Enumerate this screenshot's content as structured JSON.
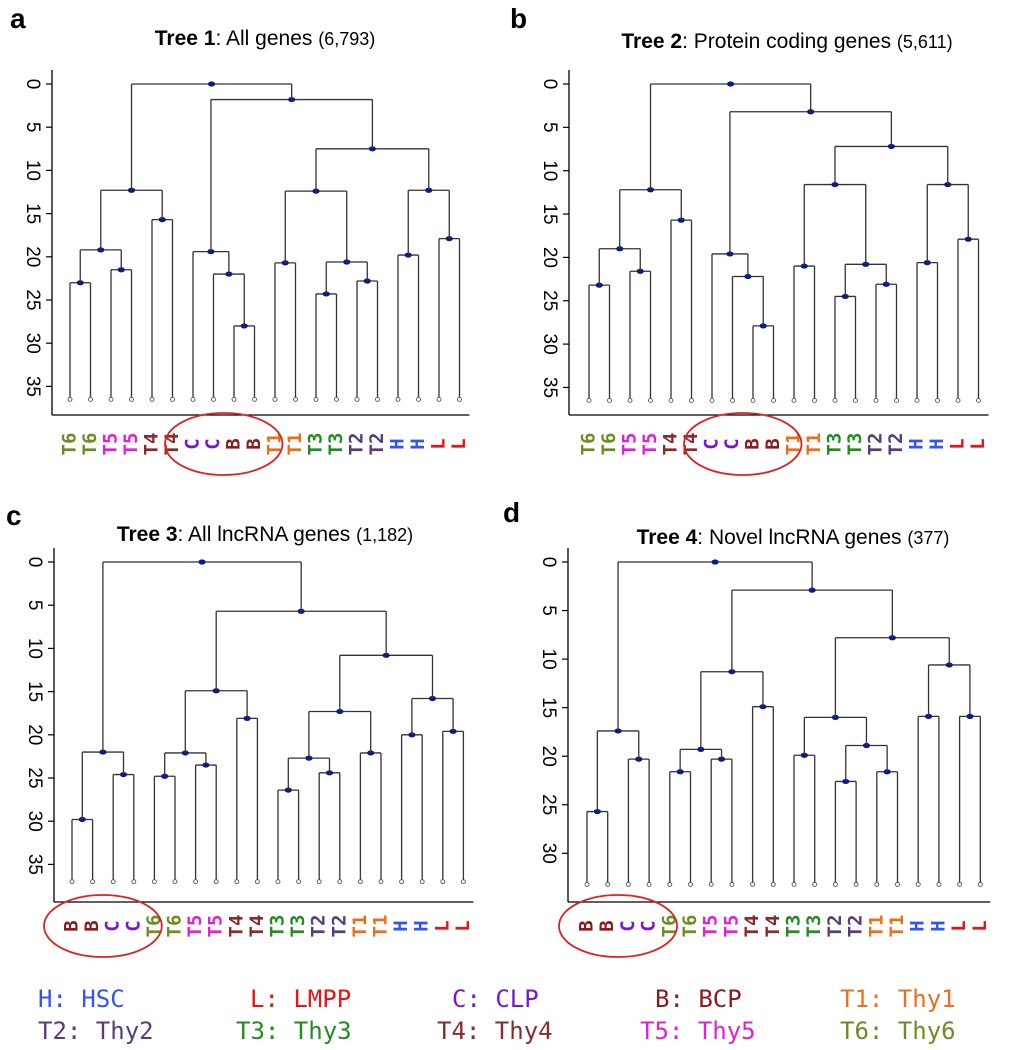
{
  "colors": {
    "H": "#3355ee",
    "L": "#ee1111",
    "C": "#7a14d6",
    "B": "#8b1a1a",
    "T1": "#e8701a",
    "T2": "#5b3a78",
    "T3": "#228b22",
    "T4": "#8b2a2a",
    "T5": "#e020d8",
    "T6": "#6b8e23",
    "line": "#333333",
    "node": "#0a1a8c",
    "circle": "#dd2222"
  },
  "legend": [
    [
      {
        "code": "H",
        "label": "H: HSC"
      },
      {
        "code": "L",
        "label": "L: LMPP"
      },
      {
        "code": "C",
        "label": "C: CLP"
      },
      {
        "code": "B",
        "label": "B: BCP"
      },
      {
        "code": "T1",
        "label": "T1: Thy1"
      }
    ],
    [
      {
        "code": "T2",
        "label": "T2: Thy2"
      },
      {
        "code": "T3",
        "label": "T3: Thy3"
      },
      {
        "code": "T4",
        "label": "T4: Thy4"
      },
      {
        "code": "T5",
        "label": "T5: Thy5"
      },
      {
        "code": "T6",
        "label": "T6: Thy6"
      }
    ]
  ],
  "chart_data": [
    {
      "type": "dendrogram",
      "panel_label": "a",
      "title_bold": "Tree 1",
      "title_rest": ": All genes",
      "title_count": "(6,793)",
      "y_ticks": [
        0,
        5,
        10,
        15,
        20,
        25,
        30,
        35
      ],
      "ylim": [
        0,
        36.5
      ],
      "leaf_height": 36.5,
      "leaves": [
        "T6",
        "T6",
        "T5",
        "T5",
        "T4",
        "T4",
        "C",
        "C",
        "B",
        "B",
        "T1",
        "T1",
        "T3",
        "T3",
        "T2",
        "T2",
        "H",
        "H",
        "L",
        "L"
      ],
      "circled": [
        6,
        9
      ],
      "merges": [
        {
          "a": "L0",
          "b": "L1",
          "h": 23
        },
        {
          "a": "L2",
          "b": "L3",
          "h": 21.5
        },
        {
          "a": "N0",
          "b": "N1",
          "h": 19.2
        },
        {
          "a": "L4",
          "b": "L5",
          "h": 15.7
        },
        {
          "a": "N2",
          "b": "N3",
          "h": 12.3
        },
        {
          "a": "L8",
          "b": "L9",
          "h": 28
        },
        {
          "a": "L7",
          "b": "N5",
          "h": 22
        },
        {
          "a": "L6",
          "b": "N6",
          "h": 19.4
        },
        {
          "a": "L10",
          "b": "L11",
          "h": 20.7
        },
        {
          "a": "L12",
          "b": "L13",
          "h": 24.3
        },
        {
          "a": "L14",
          "b": "L15",
          "h": 22.8
        },
        {
          "a": "N9",
          "b": "N10",
          "h": 20.6
        },
        {
          "a": "N8",
          "b": "N11",
          "h": 12.4
        },
        {
          "a": "L16",
          "b": "L17",
          "h": 19.8
        },
        {
          "a": "L18",
          "b": "L19",
          "h": 17.9
        },
        {
          "a": "N13",
          "b": "N14",
          "h": 12.3
        },
        {
          "a": "N12",
          "b": "N15",
          "h": 7.5
        },
        {
          "a": "N7",
          "b": "N16",
          "h": 1.8
        },
        {
          "a": "N4",
          "b": "N17",
          "h": 0
        }
      ]
    },
    {
      "type": "dendrogram",
      "panel_label": "b",
      "title_bold": "Tree 2",
      "title_rest": ": Protein coding genes",
      "title_count": "(5,611)",
      "y_ticks": [
        0,
        5,
        10,
        15,
        20,
        25,
        30,
        35
      ],
      "ylim": [
        0,
        36.5
      ],
      "leaf_height": 36.5,
      "leaves": [
        "T6",
        "T6",
        "T5",
        "T5",
        "T4",
        "T4",
        "C",
        "C",
        "B",
        "B",
        "T1",
        "T1",
        "T3",
        "T3",
        "T2",
        "T2",
        "H",
        "H",
        "L",
        "L"
      ],
      "circled": [
        6,
        9
      ],
      "merges": [
        {
          "a": "L0",
          "b": "L1",
          "h": 23.2
        },
        {
          "a": "L2",
          "b": "L3",
          "h": 21.6
        },
        {
          "a": "N0",
          "b": "N1",
          "h": 19
        },
        {
          "a": "L4",
          "b": "L5",
          "h": 15.7
        },
        {
          "a": "N2",
          "b": "N3",
          "h": 12.2
        },
        {
          "a": "L8",
          "b": "L9",
          "h": 27.9
        },
        {
          "a": "L7",
          "b": "N5",
          "h": 22.2
        },
        {
          "a": "L6",
          "b": "N6",
          "h": 19.6
        },
        {
          "a": "L10",
          "b": "L11",
          "h": 21
        },
        {
          "a": "L12",
          "b": "L13",
          "h": 24.5
        },
        {
          "a": "L14",
          "b": "L15",
          "h": 23.1
        },
        {
          "a": "N9",
          "b": "N10",
          "h": 20.8
        },
        {
          "a": "N8",
          "b": "N11",
          "h": 11.6
        },
        {
          "a": "L16",
          "b": "L17",
          "h": 20.6
        },
        {
          "a": "L18",
          "b": "L19",
          "h": 17.9
        },
        {
          "a": "N13",
          "b": "N14",
          "h": 11.6
        },
        {
          "a": "N12",
          "b": "N15",
          "h": 7.2
        },
        {
          "a": "N7",
          "b": "N16",
          "h": 3.2
        },
        {
          "a": "N4",
          "b": "N17",
          "h": 0
        }
      ]
    },
    {
      "type": "dendrogram",
      "panel_label": "c",
      "title_bold": "Tree 3",
      "title_rest": ": All lncRNA genes",
      "title_count": "(1,182)",
      "y_ticks": [
        0,
        5,
        10,
        15,
        20,
        25,
        30,
        35
      ],
      "ylim": [
        0,
        37
      ],
      "leaf_height": 37,
      "leaves": [
        "B",
        "B",
        "C",
        "C",
        "T6",
        "T6",
        "T5",
        "T5",
        "T4",
        "T4",
        "T3",
        "T3",
        "T2",
        "T2",
        "T1",
        "T1",
        "H",
        "H",
        "L",
        "L"
      ],
      "circled": [
        0,
        3
      ],
      "merges": [
        {
          "a": "L0",
          "b": "L1",
          "h": 29.8
        },
        {
          "a": "L2",
          "b": "L3",
          "h": 24.6
        },
        {
          "a": "N0",
          "b": "N1",
          "h": 22
        },
        {
          "a": "L4",
          "b": "L5",
          "h": 24.8
        },
        {
          "a": "L6",
          "b": "L7",
          "h": 23.5
        },
        {
          "a": "N3",
          "b": "N4",
          "h": 22.1
        },
        {
          "a": "L8",
          "b": "L9",
          "h": 18.1
        },
        {
          "a": "N5",
          "b": "N6",
          "h": 14.9
        },
        {
          "a": "L10",
          "b": "L11",
          "h": 26.4
        },
        {
          "a": "L12",
          "b": "L13",
          "h": 24.4
        },
        {
          "a": "N8",
          "b": "N9",
          "h": 22.7
        },
        {
          "a": "L14",
          "b": "L15",
          "h": 22.1
        },
        {
          "a": "N10",
          "b": "N11",
          "h": 17.3
        },
        {
          "a": "L16",
          "b": "L17",
          "h": 20
        },
        {
          "a": "L18",
          "b": "L19",
          "h": 19.6
        },
        {
          "a": "N13",
          "b": "N14",
          "h": 15.8
        },
        {
          "a": "N12",
          "b": "N15",
          "h": 10.8
        },
        {
          "a": "N7",
          "b": "N16",
          "h": 5.7
        },
        {
          "a": "N2",
          "b": "N17",
          "h": 0
        }
      ]
    },
    {
      "type": "dendrogram",
      "panel_label": "d",
      "title_bold": "Tree 4",
      "title_rest": ": Novel lncRNA genes",
      "title_count": "(377)",
      "y_ticks": [
        0,
        5,
        10,
        15,
        20,
        25,
        30
      ],
      "ylim": [
        0,
        33.2
      ],
      "leaf_height": 33.2,
      "leaves": [
        "B",
        "B",
        "C",
        "C",
        "T6",
        "T6",
        "T5",
        "T5",
        "T4",
        "T4",
        "T3",
        "T3",
        "T2",
        "T2",
        "T1",
        "T1",
        "H",
        "H",
        "L",
        "L"
      ],
      "circled": [
        0,
        3
      ],
      "merges": [
        {
          "a": "L0",
          "b": "L1",
          "h": 25.7
        },
        {
          "a": "L2",
          "b": "L3",
          "h": 20.3
        },
        {
          "a": "N0",
          "b": "N1",
          "h": 17.4
        },
        {
          "a": "L4",
          "b": "L5",
          "h": 21.6
        },
        {
          "a": "L6",
          "b": "L7",
          "h": 20.3
        },
        {
          "a": "N3",
          "b": "N4",
          "h": 19.3
        },
        {
          "a": "L8",
          "b": "L9",
          "h": 14.9
        },
        {
          "a": "N5",
          "b": "N6",
          "h": 11.3
        },
        {
          "a": "L10",
          "b": "L11",
          "h": 19.9
        },
        {
          "a": "L12",
          "b": "L13",
          "h": 22.6
        },
        {
          "a": "L14",
          "b": "L15",
          "h": 21.6
        },
        {
          "a": "N9",
          "b": "N10",
          "h": 18.9
        },
        {
          "a": "N8",
          "b": "N11",
          "h": 16
        },
        {
          "a": "L16",
          "b": "L17",
          "h": 15.9
        },
        {
          "a": "L18",
          "b": "L19",
          "h": 15.9
        },
        {
          "a": "N13",
          "b": "N14",
          "h": 10.6
        },
        {
          "a": "N12",
          "b": "N15",
          "h": 7.8
        },
        {
          "a": "N7",
          "b": "N16",
          "h": 2.9
        },
        {
          "a": "N2",
          "b": "N17",
          "h": 0
        }
      ]
    }
  ]
}
